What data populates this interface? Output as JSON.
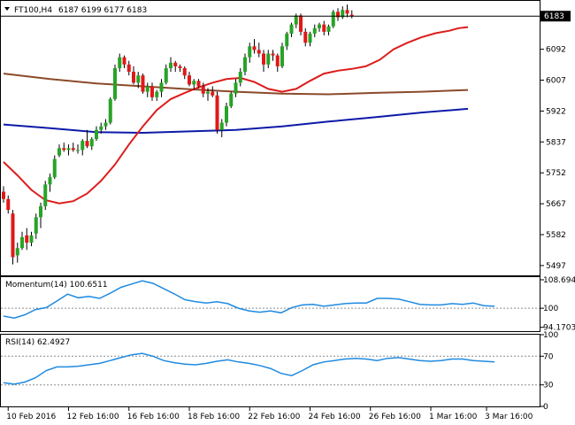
{
  "header": {
    "symbol_label": "FT100,H4",
    "ohlc_label": "6187 6199 6177 6183",
    "current_price_label": "6183"
  },
  "colors": {
    "bull": "#27a327",
    "bear": "#e01818",
    "sma_fast": "#dd1c1c",
    "sma_mid": "#8b4a2a",
    "sma_slow": "#0d1aa8",
    "indicator_line": "#1f8ae0",
    "level_line": "#8c8c8c",
    "price_line": "#000000"
  },
  "chart_data": [
    {
      "type": "candlestick",
      "title": "FT100,H4",
      "ylim": [
        5470,
        6225
      ],
      "y_ticks": [
        6183,
        6092,
        6007,
        5922,
        5837,
        5752,
        5667,
        5582,
        5497
      ],
      "x_ticks": [
        {
          "label": "10 Feb 2016",
          "x": 1
        },
        {
          "label": "12 Feb 16:00",
          "x": 14
        },
        {
          "label": "16 Feb 16:00",
          "x": 27
        },
        {
          "label": "18 Feb 16:00",
          "x": 40
        },
        {
          "label": "22 Feb 16:00",
          "x": 53
        },
        {
          "label": "24 Feb 16:00",
          "x": 66
        },
        {
          "label": "26 Feb 16:00",
          "x": 79
        },
        {
          "label": "1 Mar 16:00",
          "x": 92
        },
        {
          "label": "3 Mar 16:00",
          "x": 104
        }
      ],
      "candles": [
        [
          5700,
          5715,
          5670,
          5680
        ],
        [
          5680,
          5690,
          5640,
          5650
        ],
        [
          5640,
          5650,
          5500,
          5520
        ],
        [
          5525,
          5560,
          5505,
          5545
        ],
        [
          5545,
          5590,
          5540,
          5575
        ],
        [
          5580,
          5600,
          5540,
          5560
        ],
        [
          5560,
          5590,
          5550,
          5580
        ],
        [
          5585,
          5640,
          5570,
          5630
        ],
        [
          5630,
          5670,
          5600,
          5660
        ],
        [
          5660,
          5730,
          5650,
          5720
        ],
        [
          5720,
          5750,
          5700,
          5740
        ],
        [
          5740,
          5800,
          5735,
          5790
        ],
        [
          5800,
          5830,
          5795,
          5820
        ],
        [
          5820,
          5835,
          5810,
          5815
        ],
        [
          5815,
          5830,
          5800,
          5820
        ],
        [
          5820,
          5835,
          5810,
          5815
        ],
        [
          5815,
          5830,
          5805,
          5815
        ],
        [
          5815,
          5845,
          5800,
          5840
        ],
        [
          5840,
          5870,
          5820,
          5825
        ],
        [
          5825,
          5850,
          5815,
          5845
        ],
        [
          5845,
          5880,
          5840,
          5870
        ],
        [
          5870,
          5890,
          5860,
          5880
        ],
        [
          5880,
          5900,
          5870,
          5890
        ],
        [
          5890,
          5960,
          5885,
          5955
        ],
        [
          5955,
          6050,
          5950,
          6040
        ],
        [
          6040,
          6080,
          6030,
          6070
        ],
        [
          6070,
          6075,
          6040,
          6050
        ],
        [
          6050,
          6060,
          6020,
          6030
        ],
        [
          6030,
          6045,
          5995,
          6000
        ],
        [
          6000,
          6030,
          5985,
          6020
        ],
        [
          6020,
          6025,
          5970,
          5975
        ],
        [
          5975,
          6000,
          5960,
          5990
        ],
        [
          5990,
          6000,
          5950,
          5960
        ],
        [
          5960,
          5980,
          5950,
          5975
        ],
        [
          5975,
          6010,
          5960,
          6000
        ],
        [
          6000,
          6050,
          5995,
          6040
        ],
        [
          6040,
          6070,
          6030,
          6055
        ],
        [
          6055,
          6060,
          6030,
          6045
        ],
        [
          6045,
          6050,
          6030,
          6040
        ],
        [
          6040,
          6045,
          6010,
          6020
        ],
        [
          6020,
          6030,
          5990,
          5995
        ],
        [
          5995,
          6010,
          5980,
          6005
        ],
        [
          6005,
          6010,
          5985,
          5990
        ],
        [
          5990,
          6000,
          5960,
          5970
        ],
        [
          5970,
          5985,
          5950,
          5975
        ],
        [
          5975,
          5990,
          5960,
          5965
        ],
        [
          5965,
          5975,
          5860,
          5870
        ],
        [
          5870,
          5900,
          5850,
          5890
        ],
        [
          5890,
          5945,
          5880,
          5935
        ],
        [
          5935,
          5975,
          5930,
          5970
        ],
        [
          5970,
          6010,
          5960,
          6000
        ],
        [
          6000,
          6040,
          5990,
          6030
        ],
        [
          6030,
          6080,
          6020,
          6070
        ],
        [
          6070,
          6110,
          6055,
          6100
        ],
        [
          6100,
          6120,
          6080,
          6090
        ],
        [
          6090,
          6110,
          6070,
          6080
        ],
        [
          6080,
          6090,
          6030,
          6050
        ],
        [
          6050,
          6090,
          6040,
          6080
        ],
        [
          6080,
          6090,
          6060,
          6075
        ],
        [
          6075,
          6080,
          6030,
          6045
        ],
        [
          6045,
          6110,
          6040,
          6100
        ],
        [
          6100,
          6140,
          6090,
          6135
        ],
        [
          6135,
          6165,
          6125,
          6160
        ],
        [
          6160,
          6190,
          6150,
          6185
        ],
        [
          6185,
          6190,
          6130,
          6140
        ],
        [
          6140,
          6150,
          6100,
          6110
        ],
        [
          6110,
          6140,
          6100,
          6135
        ],
        [
          6135,
          6160,
          6125,
          6150
        ],
        [
          6150,
          6165,
          6140,
          6160
        ],
        [
          6160,
          6170,
          6130,
          6140
        ],
        [
          6140,
          6160,
          6130,
          6155
        ],
        [
          6155,
          6200,
          6150,
          6195
        ],
        [
          6195,
          6205,
          6170,
          6180
        ],
        [
          6180,
          6210,
          6175,
          6200
        ],
        [
          6200,
          6215,
          6180,
          6190
        ],
        [
          6187,
          6199,
          6177,
          6183
        ]
      ],
      "sma_fast": [
        [
          0,
          5782
        ],
        [
          3,
          5745
        ],
        [
          6,
          5705
        ],
        [
          9,
          5677
        ],
        [
          12,
          5668
        ],
        [
          15,
          5674
        ],
        [
          18,
          5695
        ],
        [
          21,
          5730
        ],
        [
          24,
          5775
        ],
        [
          27,
          5830
        ],
        [
          30,
          5880
        ],
        [
          33,
          5925
        ],
        [
          36,
          5955
        ],
        [
          39,
          5972
        ],
        [
          42,
          5987
        ],
        [
          45,
          6000
        ],
        [
          48,
          6010
        ],
        [
          51,
          6013
        ],
        [
          54,
          6002
        ],
        [
          57,
          5983
        ],
        [
          60,
          5975
        ],
        [
          63,
          5983
        ],
        [
          66,
          6005
        ],
        [
          69,
          6025
        ],
        [
          72,
          6033
        ],
        [
          75,
          6038
        ],
        [
          78,
          6045
        ],
        [
          81,
          6063
        ],
        [
          84,
          6092
        ],
        [
          87,
          6110
        ],
        [
          90,
          6125
        ],
        [
          93,
          6136
        ],
        [
          96,
          6143
        ],
        [
          98,
          6150
        ],
        [
          100,
          6153
        ]
      ],
      "sma_mid": [
        [
          0,
          6025
        ],
        [
          10,
          6010
        ],
        [
          20,
          5998
        ],
        [
          30,
          5990
        ],
        [
          40,
          5982
        ],
        [
          50,
          5975
        ],
        [
          60,
          5970
        ],
        [
          70,
          5968
        ],
        [
          80,
          5972
        ],
        [
          90,
          5975
        ],
        [
          100,
          5980
        ]
      ],
      "sma_slow": [
        [
          0,
          5885
        ],
        [
          10,
          5875
        ],
        [
          20,
          5864
        ],
        [
          30,
          5862
        ],
        [
          40,
          5866
        ],
        [
          50,
          5870
        ],
        [
          60,
          5880
        ],
        [
          70,
          5893
        ],
        [
          80,
          5905
        ],
        [
          90,
          5918
        ],
        [
          100,
          5928
        ]
      ],
      "current_price": 6183
    },
    {
      "type": "line",
      "title": "Momentum(14) 100.6511",
      "ylim": [
        93.0,
        109.5
      ],
      "y_ticks": [
        108.6946,
        100,
        94.1703
      ],
      "level": 100,
      "values": [
        [
          0,
          97.6
        ],
        [
          3,
          97.0
        ],
        [
          6,
          98.0
        ],
        [
          9,
          99.6
        ],
        [
          12,
          100.2
        ],
        [
          15,
          102.2
        ],
        [
          18,
          104.3
        ],
        [
          21,
          103.2
        ],
        [
          24,
          103.6
        ],
        [
          27,
          103.0
        ],
        [
          30,
          104.6
        ],
        [
          33,
          106.4
        ],
        [
          36,
          107.4
        ],
        [
          39,
          108.4
        ],
        [
          42,
          107.6
        ],
        [
          45,
          106.0
        ],
        [
          48,
          104.4
        ],
        [
          51,
          102.6
        ],
        [
          54,
          102.0
        ],
        [
          57,
          101.6
        ],
        [
          60,
          102.0
        ],
        [
          63,
          101.4
        ],
        [
          66,
          100.0
        ],
        [
          69,
          99.2
        ],
        [
          72,
          98.8
        ],
        [
          75,
          99.2
        ],
        [
          78,
          98.6
        ],
        [
          81,
          100.2
        ],
        [
          84,
          101.0
        ],
        [
          87,
          101.2
        ],
        [
          90,
          100.6
        ],
        [
          93,
          101.0
        ],
        [
          96,
          101.4
        ],
        [
          99,
          101.6
        ],
        [
          102,
          101.6
        ],
        [
          105,
          103.0
        ],
        [
          108,
          103.0
        ],
        [
          111,
          102.8
        ],
        [
          114,
          102.0
        ],
        [
          117,
          101.2
        ],
        [
          120,
          101.0
        ],
        [
          123,
          101.0
        ],
        [
          126,
          101.4
        ],
        [
          129,
          101.2
        ],
        [
          132,
          101.6
        ],
        [
          135,
          100.8
        ],
        [
          138,
          100.6
        ]
      ]
    },
    {
      "type": "line",
      "title": "RSI(14) 62.4927",
      "ylim": [
        0,
        100
      ],
      "y_ticks": [
        100,
        70,
        30,
        0
      ],
      "levels": [
        70,
        30
      ],
      "values": [
        [
          0,
          33
        ],
        [
          3,
          31
        ],
        [
          6,
          34
        ],
        [
          9,
          40
        ],
        [
          12,
          50
        ],
        [
          15,
          55
        ],
        [
          18,
          55
        ],
        [
          21,
          56
        ],
        [
          24,
          58
        ],
        [
          27,
          60
        ],
        [
          30,
          64
        ],
        [
          33,
          68
        ],
        [
          36,
          72
        ],
        [
          39,
          74
        ],
        [
          42,
          70
        ],
        [
          45,
          64
        ],
        [
          48,
          61
        ],
        [
          51,
          59
        ],
        [
          54,
          58
        ],
        [
          57,
          60
        ],
        [
          60,
          63
        ],
        [
          63,
          65
        ],
        [
          66,
          62
        ],
        [
          69,
          60
        ],
        [
          72,
          57
        ],
        [
          75,
          53
        ],
        [
          78,
          46
        ],
        [
          81,
          43
        ],
        [
          84,
          50
        ],
        [
          87,
          58
        ],
        [
          90,
          62
        ],
        [
          93,
          64
        ],
        [
          96,
          66
        ],
        [
          99,
          67
        ],
        [
          102,
          66
        ],
        [
          105,
          64
        ],
        [
          108,
          67
        ],
        [
          111,
          68
        ],
        [
          114,
          66
        ],
        [
          117,
          64
        ],
        [
          120,
          63
        ],
        [
          123,
          64
        ],
        [
          126,
          66
        ],
        [
          129,
          66
        ],
        [
          132,
          64
        ],
        [
          135,
          63
        ],
        [
          138,
          62
        ]
      ]
    }
  ]
}
